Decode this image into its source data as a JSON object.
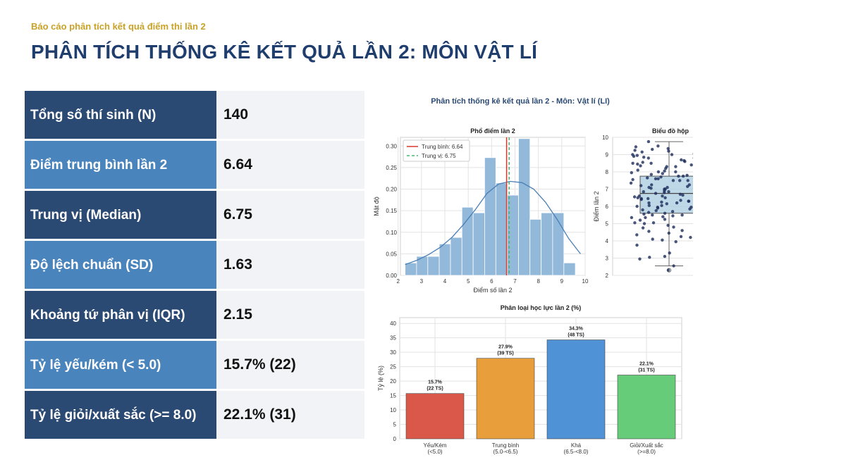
{
  "header": {
    "subtitle": "Báo cáo phân tích kết quả điểm thi lần 2",
    "title": "PHÂN TÍCH THỐNG KÊ KẾT QUẢ LẦN 2: MÔN VẬT LÍ"
  },
  "stats": [
    {
      "label": "Tổng số thí sinh (N)",
      "value": "140"
    },
    {
      "label": "Điểm trung bình lần 2",
      "value": "6.64"
    },
    {
      "label": "Trung vị (Median)",
      "value": "6.75"
    },
    {
      "label": "Độ lệch chuẩn (SD)",
      "value": "1.63"
    },
    {
      "label": "Khoảng tứ phân vị (IQR)",
      "value": "2.15"
    },
    {
      "label": "Tỷ lệ yếu/kém (< 5.0)",
      "value": "15.7% (22)"
    },
    {
      "label": "Tỷ lệ giỏi/xuất sắc (>= 8.0)",
      "value": "22.1% (31)"
    }
  ],
  "colors": {
    "dark_row": "#2b4a73",
    "light_row": "#4a84bd",
    "title": "#1f3e6e",
    "subtitle": "#c9a227"
  },
  "figure_title": "Phân tích thống kê kết quả lần 2 - Môn: Vật lí (LI)",
  "chart_data": [
    {
      "type": "bar",
      "subtype": "histogram_kde",
      "title": "Phổ điểm lần 2",
      "xlabel": "Điểm số lần 2",
      "ylabel": "Mật độ",
      "xlim": [
        2.1,
        10.0
      ],
      "ylim": [
        0,
        0.32
      ],
      "xticks": [
        2,
        3,
        4,
        5,
        6,
        7,
        8,
        9,
        10
      ],
      "yticks": [
        0.0,
        0.05,
        0.1,
        0.15,
        0.2,
        0.25,
        0.3
      ],
      "bin_edges": [
        2.3,
        2.79,
        3.27,
        3.76,
        4.24,
        4.73,
        5.21,
        5.7,
        6.18,
        6.67,
        7.15,
        7.64,
        8.12,
        8.61,
        9.09,
        9.58,
        10.06
      ],
      "densities": [
        0.029,
        0.044,
        0.044,
        0.073,
        0.088,
        0.158,
        0.145,
        0.273,
        0.214,
        0.186,
        0.317,
        0.13,
        0.145,
        0.145,
        0.029,
        0.0
      ],
      "kde": {
        "x": [
          2.3,
          2.8,
          3.3,
          3.8,
          4.3,
          4.8,
          5.3,
          5.8,
          6.3,
          6.8,
          7.3,
          7.8,
          8.3,
          8.8,
          9.3,
          9.8
        ],
        "y": [
          0.025,
          0.035,
          0.048,
          0.065,
          0.088,
          0.118,
          0.152,
          0.19,
          0.212,
          0.218,
          0.215,
          0.2,
          0.17,
          0.13,
          0.085,
          0.05
        ]
      },
      "mean": 6.64,
      "median": 6.75,
      "legend": [
        "Trung bình: 6.64",
        "Trung vị: 6.75"
      ],
      "legend_position": "top-left",
      "colors": {
        "bars": "#92b8da",
        "kde": "#4a7fb5",
        "mean": "#d9352a",
        "median": "#3dbb6a"
      },
      "grid": true
    },
    {
      "type": "scatter",
      "subtype": "box_strip",
      "title": "Biểu đồ hộp",
      "ylabel": "Điểm lần 2",
      "ylim": [
        2,
        10
      ],
      "yticks": [
        2,
        3,
        4,
        5,
        6,
        7,
        8,
        9,
        10
      ],
      "box": {
        "whisker_low": 2.55,
        "q1": 5.6,
        "median": 6.75,
        "q3": 7.75,
        "whisker_high": 9.75,
        "outliers": [
          2.3
        ]
      },
      "points": [
        2.3,
        2.55,
        2.95,
        3.05,
        3.1,
        3.3,
        3.75,
        3.8,
        3.95,
        4.05,
        4.1,
        4.2,
        4.25,
        4.35,
        4.45,
        4.55,
        4.6,
        4.75,
        4.8,
        4.9,
        5.0,
        5.05,
        5.1,
        5.15,
        5.2,
        5.25,
        5.3,
        5.35,
        5.4,
        5.45,
        5.5,
        5.5,
        5.55,
        5.6,
        5.6,
        5.65,
        5.7,
        5.75,
        5.8,
        5.85,
        5.9,
        5.95,
        6.0,
        6.0,
        6.05,
        6.1,
        6.15,
        6.2,
        6.2,
        6.25,
        6.3,
        6.35,
        6.4,
        6.45,
        6.5,
        6.5,
        6.55,
        6.6,
        6.65,
        6.7,
        6.75,
        6.75,
        6.8,
        6.85,
        6.9,
        6.95,
        7.0,
        7.0,
        7.05,
        7.1,
        7.15,
        7.2,
        7.25,
        7.25,
        7.3,
        7.35,
        7.4,
        7.45,
        7.5,
        7.5,
        7.5,
        7.55,
        7.6,
        7.6,
        7.65,
        7.7,
        7.75,
        7.8,
        7.85,
        7.9,
        7.95,
        8.0,
        8.0,
        8.05,
        8.1,
        8.15,
        8.2,
        8.25,
        8.3,
        8.3,
        8.35,
        8.4,
        8.45,
        8.5,
        8.5,
        8.55,
        8.6,
        8.65,
        8.7,
        8.75,
        8.8,
        8.8,
        8.85,
        8.9,
        8.95,
        9.0,
        9.0,
        9.05,
        9.1,
        9.15,
        9.2,
        9.25,
        9.3,
        9.35,
        9.45,
        9.5,
        9.75,
        5.05,
        5.95,
        6.45,
        6.85,
        7.35,
        7.75,
        8.45,
        6.05,
        6.6,
        7.1,
        7.9,
        5.35,
        6.3
      ],
      "colors": {
        "box": "#a9cbe0",
        "points": "#1c2c5a"
      },
      "grid": true
    },
    {
      "type": "bar",
      "title": "Phân loại học lực lần 2 (%)",
      "ylabel": "Tỷ lệ (%)",
      "ylim": [
        0,
        42
      ],
      "yticks": [
        0,
        5,
        10,
        15,
        20,
        25,
        30,
        35,
        40
      ],
      "categories": [
        "Yếu/Kém (<5.0)",
        "Trung bình (5.0-<6.5)",
        "Khá (6.5-<8.0)",
        "Giỏi/Xuất sắc (>=8.0)"
      ],
      "category_lines": [
        [
          "Yếu/Kém",
          "(<5.0)"
        ],
        [
          "Trung bình",
          "(5.0-<6.5)"
        ],
        [
          "Khá",
          "(6.5-<8.0)"
        ],
        [
          "Giỏi/Xuất sắc",
          "(>=8.0)"
        ]
      ],
      "values": [
        15.7,
        27.9,
        34.3,
        22.1
      ],
      "labels": [
        [
          "15.7%",
          "(22 TS)"
        ],
        [
          "27.9%",
          "(39 TS)"
        ],
        [
          "34.3%",
          "(48 TS)"
        ],
        [
          "22.1%",
          "(31 TS)"
        ]
      ],
      "colors": [
        "#d9584a",
        "#e89e3a",
        "#4f92d6",
        "#66cc7a"
      ],
      "grid": true
    }
  ]
}
